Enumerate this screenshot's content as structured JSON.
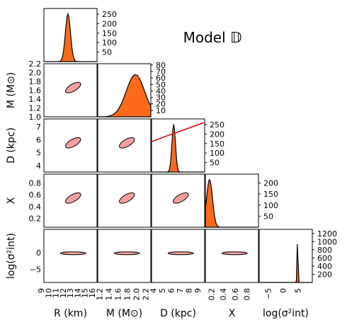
{
  "title": "Model 𝔻",
  "chart_data": {
    "type": "corner",
    "title": "Model 𝔻",
    "parameters": [
      {
        "key": "R",
        "label": "R (km)",
        "ticks": [
          "9",
          "10",
          "11",
          "12",
          "13",
          "14",
          "15",
          "16"
        ],
        "range": [
          9,
          16.3
        ]
      },
      {
        "key": "M",
        "label": "M (M⊙)",
        "ticks": [
          "1.2",
          "1.4",
          "1.6",
          "1.8",
          "2.0",
          "2.2"
        ],
        "range": [
          1.1,
          2.25
        ]
      },
      {
        "key": "D",
        "label": "D (kpc)",
        "ticks": [
          "4",
          "5",
          "6",
          "7",
          "8",
          "9"
        ],
        "range": [
          3.5,
          9.5
        ]
      },
      {
        "key": "X",
        "label": "X",
        "ticks": [
          "0.2",
          "0.4",
          "0.6",
          "0.8"
        ],
        "range": [
          0.05,
          0.95
        ]
      },
      {
        "key": "sig",
        "label": "log(σ²int)",
        "ticks": [
          "−5",
          "0",
          "5"
        ],
        "range": [
          -9,
          9
        ]
      }
    ],
    "row_labels": [
      "M (M⊙)",
      "D (kpc)",
      "X",
      "log(σ²int)"
    ],
    "row_ticks": [
      [
        "1.0",
        "1.2",
        "1.4",
        "1.6",
        "1.8",
        "2.0",
        "2.2"
      ],
      [
        "4",
        "5",
        "6",
        "7"
      ],
      [
        "0.2",
        "0.4",
        "0.6",
        "0.8"
      ],
      [
        "−5",
        "0"
      ]
    ],
    "row_ranges": [
      [
        1.0,
        2.2
      ],
      [
        3.5,
        7.6
      ],
      [
        0.05,
        0.95
      ],
      [
        -9,
        7
      ]
    ],
    "hist_ticks": [
      [
        "50",
        "100",
        "150",
        "200",
        "250"
      ],
      [
        "10",
        "20",
        "30",
        "40",
        "50",
        "60",
        "70",
        "80"
      ],
      [
        "50",
        "100",
        "150",
        "200",
        "250"
      ],
      [
        "50",
        "100",
        "150",
        "200"
      ],
      [
        "200",
        "400",
        "600",
        "800",
        "1000",
        "1200"
      ]
    ],
    "hist_max": [
      280,
      82,
      280,
      240,
      1300
    ],
    "histograms": [
      {
        "center": 12.3,
        "width": 0.35
      },
      {
        "center": 1.9,
        "width": 0.2
      },
      {
        "center": 6.0,
        "width": 0.2
      },
      {
        "center": 0.12,
        "width": 0.05
      },
      {
        "center": 4.0,
        "width": 0.15
      }
    ],
    "prior_curve_D": true
  }
}
